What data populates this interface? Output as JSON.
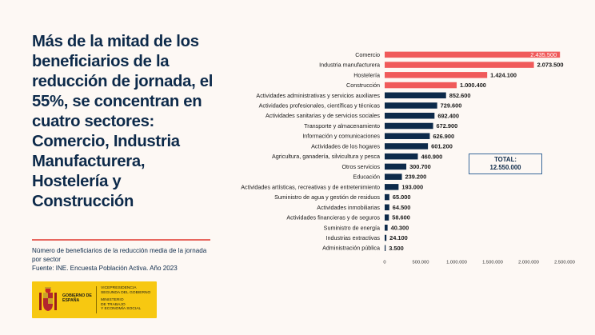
{
  "headline": "Más de la mitad de los beneficiarios de la reducción de jornada, el 55%, se concentran en cuatro sectores: Comercio, Industria Manufacturera, Hostelería y Construcción",
  "subtitle_line1": "Número de beneficiarios de la reducción media de la jornada por sector",
  "subtitle_line2": "Fuente: INE. Encuesta Población Activa. Año 2023",
  "logo": {
    "gobierno": "GOBIERNO DE ESPAÑA",
    "vice_1": "VICEPRESIDENCIA",
    "vice_2": "SEGUNDA DEL GOBIERNO",
    "min_1": "MINISTERIO",
    "min_2": "DE TRABAJO",
    "min_3": "Y ECONOMÍA SOCIAL",
    "color": "#f7c811"
  },
  "total": {
    "label": "TOTAL:",
    "value": "12.550.000"
  },
  "colors": {
    "highlight": "#f05a5a",
    "normal": "#0d2a4a",
    "accent_line": "#e8675f"
  },
  "chart_data": {
    "type": "bar",
    "orientation": "horizontal",
    "categories": [
      "Comercio",
      "Industria manufacturera",
      "Hostelería",
      "Construcción",
      "Actividades administrativas y servicios auxiliares",
      "Actividades profesionales, científicas y técnicas",
      "Actividades sanitarias y de servicios sociales",
      "Transporte y almacenamiento",
      "Información y comunicaciones",
      "Actividades de los hogares",
      "Agricultura, ganadería, silvicultura y pesca",
      "Otros servicios",
      "Educación",
      "Actividades artísticas, recreativas y de entretenimiento",
      "Suministro de agua y gestión de residuos",
      "Actividades inmobiliarias",
      "Actividades financieras y de seguros",
      "Suministro de energía",
      "Industrias extractivas",
      "Administración pública"
    ],
    "values": [
      2435500,
      2073500,
      1424100,
      1000400,
      852600,
      729600,
      692400,
      672900,
      626900,
      601200,
      460900,
      300700,
      239200,
      193000,
      65000,
      64500,
      58600,
      40300,
      24100,
      3500
    ],
    "value_labels": [
      "2.435.500",
      "2.073.500",
      "1.424.100",
      "1.000.400",
      "852.600",
      "729.600",
      "692.400",
      "672.900",
      "626.900",
      "601.200",
      "460.900",
      "300.700",
      "239.200",
      "193.000",
      "65.000",
      "64.500",
      "58.600",
      "40.300",
      "24.100",
      "3.500"
    ],
    "highlighted": [
      true,
      true,
      true,
      true,
      false,
      false,
      false,
      false,
      false,
      false,
      false,
      false,
      false,
      false,
      false,
      false,
      false,
      false,
      false,
      false
    ],
    "xlim": [
      0,
      2500000
    ],
    "xticks": [
      0,
      500000,
      1000000,
      1500000,
      2000000,
      2500000
    ],
    "xtick_labels": [
      "0",
      "500.000",
      "1.000.000",
      "1.500.000",
      "2.000.000",
      "2.500.000"
    ],
    "title": "",
    "xlabel": "",
    "ylabel": "",
    "grid": false
  }
}
